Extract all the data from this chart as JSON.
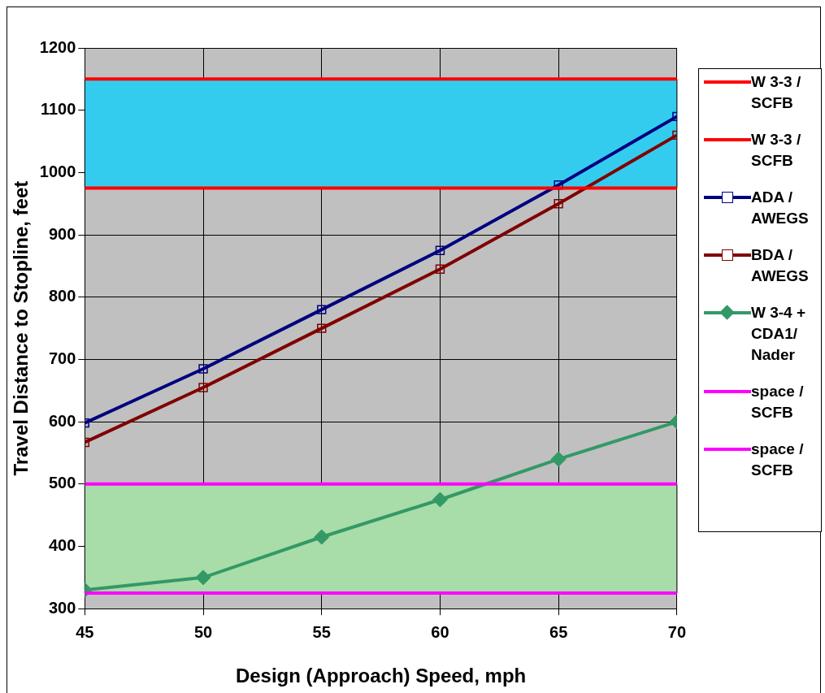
{
  "chart_data": {
    "type": "line",
    "xlabel": "Design (Approach) Speed, mph",
    "ylabel": "Travel Distance to Stopline, feet",
    "x": [
      45,
      50,
      55,
      60,
      65,
      70
    ],
    "xlim": [
      45,
      70
    ],
    "xticks": [
      45,
      50,
      55,
      60,
      65,
      70
    ],
    "ylim": [
      300,
      1200
    ],
    "yticks": [
      300,
      400,
      500,
      600,
      700,
      800,
      900,
      1000,
      1100,
      1200
    ],
    "grid": true,
    "legend": "right",
    "bands": [
      {
        "axis": "y",
        "from": 975,
        "to": 1150,
        "color": "#33ccee"
      },
      {
        "axis": "y",
        "from": 325,
        "to": 500,
        "color": "#a8dca8"
      }
    ],
    "series": [
      {
        "name": "W 3-3 / SCFB",
        "color": "#ff0000",
        "marker": "none",
        "values": [
          1150,
          1150,
          1150,
          1150,
          1150,
          1150
        ]
      },
      {
        "name": "W 3-3 / SCFB",
        "color": "#ff0000",
        "marker": "none",
        "values": [
          975,
          975,
          975,
          975,
          975,
          975
        ]
      },
      {
        "name": "ADA / AWEGS",
        "color": "#000080",
        "marker": "square",
        "values": [
          598,
          685,
          780,
          875,
          980,
          1090
        ]
      },
      {
        "name": "BDA / AWEGS",
        "color": "#800000",
        "marker": "square",
        "values": [
          567,
          655,
          750,
          845,
          950,
          1060
        ]
      },
      {
        "name": "W 3-4 + CDA1/ Nader",
        "color": "#339966",
        "marker": "diamond",
        "values": [
          330,
          350,
          415,
          475,
          540,
          600
        ]
      },
      {
        "name": "space / SCFB",
        "color": "#ff00ff",
        "marker": "none",
        "values": [
          500,
          500,
          500,
          500,
          500,
          500
        ]
      },
      {
        "name": "space / SCFB",
        "color": "#ff00ff",
        "marker": "none",
        "values": [
          325,
          325,
          325,
          325,
          325,
          325
        ]
      }
    ]
  }
}
